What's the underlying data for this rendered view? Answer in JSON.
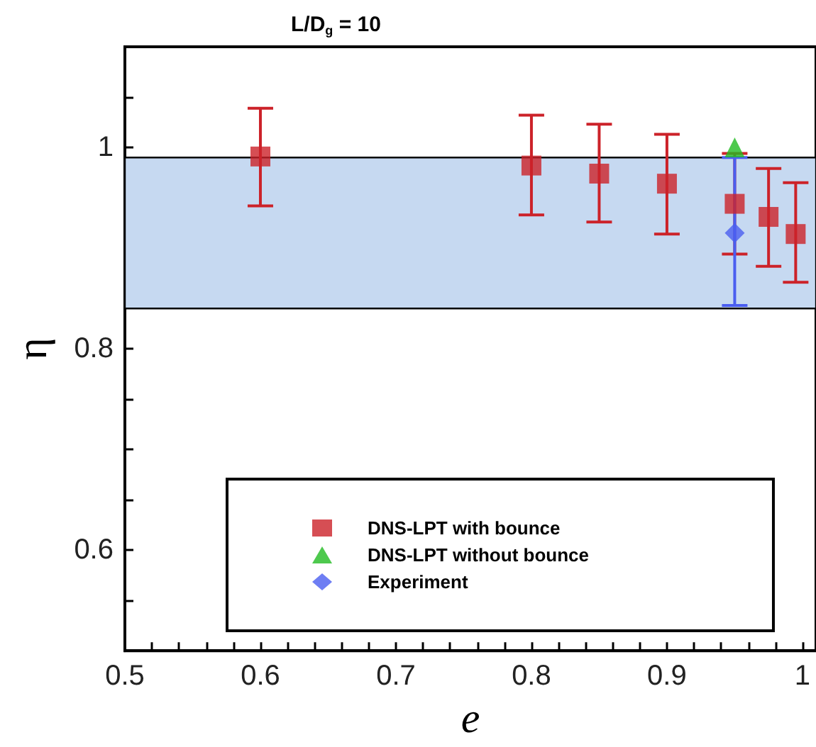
{
  "chart_data": {
    "type": "scatter",
    "title": "L/D$_{g}$ = 10",
    "xlabel": "e",
    "ylabel": "η",
    "xlim": [
      0.5,
      1.01
    ],
    "ylim": [
      0.5,
      1.1
    ],
    "xticks": [
      0.5,
      {
        "value": 0.52,
        "label": null
      },
      {
        "value": 0.54,
        "label": null
      },
      {
        "value": 0.56,
        "label": null
      },
      {
        "value": 0.58,
        "label": null
      },
      0.6,
      {
        "value": 0.62,
        "label": null
      },
      {
        "value": 0.64,
        "label": null
      },
      {
        "value": 0.66,
        "label": null
      },
      {
        "value": 0.68,
        "label": null
      },
      0.7,
      {
        "value": 0.72,
        "label": null
      },
      {
        "value": 0.74,
        "label": null
      },
      {
        "value": 0.76,
        "label": null
      },
      {
        "value": 0.78,
        "label": null
      },
      0.8,
      {
        "value": 0.82,
        "label": null
      },
      {
        "value": 0.84,
        "label": null
      },
      {
        "value": 0.86,
        "label": null
      },
      {
        "value": 0.88,
        "label": null
      },
      0.9,
      {
        "value": 0.92,
        "label": null
      },
      {
        "value": 0.94,
        "label": null
      },
      {
        "value": 0.96,
        "label": null
      },
      {
        "value": 0.98,
        "label": null
      },
      1
    ],
    "yticks": [
      {
        "value": 0.55,
        "label": null
      },
      0.6,
      {
        "value": 0.65,
        "label": null
      },
      {
        "value": 0.7,
        "label": null
      },
      {
        "value": 0.75,
        "label": null
      },
      0.8,
      {
        "value": 0.85,
        "label": null
      },
      {
        "value": 0.9,
        "label": null
      },
      {
        "value": 0.95,
        "label": null
      },
      1,
      {
        "value": 1.05,
        "label": null
      }
    ],
    "grid": false,
    "legend": "bottom",
    "bands": [
      {
        "axis": "y",
        "from": 0.84,
        "to": 0.99,
        "color": "#c6d9f1"
      }
    ],
    "series": [
      {
        "name": "DNS-LPT with bounce",
        "color": "#cc2229",
        "marker": "square",
        "x": [
          0.6,
          0.8,
          0.85,
          0.9,
          0.95,
          0.975,
          0.995
        ],
        "values": [
          0.991,
          0.982,
          0.974,
          0.964,
          0.944,
          0.931,
          0.914
        ],
        "errors": [
          [
            0.942,
            1.039
          ],
          [
            0.933,
            1.032
          ],
          [
            0.926,
            1.023
          ],
          [
            0.914,
            1.013
          ],
          [
            0.894,
            0.994
          ],
          [
            0.882,
            0.979
          ],
          [
            0.866,
            0.965
          ]
        ]
      },
      {
        "name": "DNS-LPT without bounce",
        "color": "#22bb22",
        "marker": "triangle",
        "x": [
          0.95
        ],
        "values": [
          1.0
        ]
      },
      {
        "name": "Experiment",
        "color": "#4a5ef0",
        "marker": "diamond",
        "x": [
          0.95
        ],
        "values": [
          0.915
        ],
        "errors": [
          [
            0.843,
            0.99
          ]
        ]
      }
    ]
  }
}
